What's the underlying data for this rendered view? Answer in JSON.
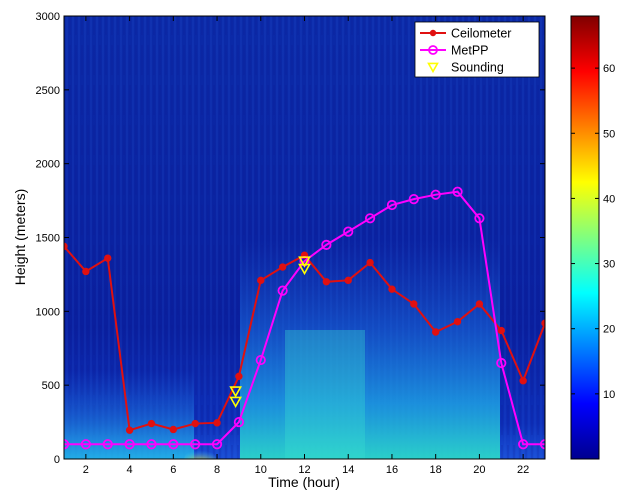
{
  "chart_data": {
    "type": "line",
    "background": "heatmap",
    "xlabel": "Time (hour)",
    "ylabel": "Height (meters)",
    "xlim": [
      1,
      23
    ],
    "ylim": [
      0,
      3000
    ],
    "xticks": [
      2,
      4,
      6,
      8,
      10,
      12,
      14,
      16,
      18,
      20,
      22
    ],
    "yticks": [
      0,
      500,
      1000,
      1500,
      2000,
      2500,
      3000
    ],
    "grid": false,
    "legend_position": "top-right",
    "series": [
      {
        "name": "Ceilometer",
        "color": "#e01010",
        "marker": "filled-circle",
        "x": [
          1,
          2,
          3,
          4,
          5,
          6,
          7,
          8,
          9,
          10,
          11,
          12,
          13,
          14,
          15,
          16,
          17,
          18,
          19,
          20,
          21,
          22,
          23
        ],
        "y": [
          1440,
          1270,
          1360,
          195,
          240,
          200,
          240,
          245,
          560,
          1210,
          1300,
          1380,
          1200,
          1210,
          1330,
          1150,
          1050,
          860,
          930,
          1050,
          870,
          530,
          920
        ]
      },
      {
        "name": "MetPP",
        "color": "#ff00ff",
        "marker": "open-circle",
        "x": [
          1,
          2,
          3,
          4,
          5,
          6,
          7,
          8,
          9,
          10,
          11,
          12,
          13,
          14,
          15,
          16,
          17,
          18,
          19,
          20,
          21,
          22,
          23
        ],
        "y": [
          100,
          100,
          100,
          100,
          100,
          100,
          100,
          100,
          250,
          670,
          1140,
          1340,
          1450,
          1540,
          1630,
          1720,
          1760,
          1790,
          1810,
          1630,
          650,
          100,
          100
        ]
      },
      {
        "name": "Sounding",
        "color": "#ffff00",
        "marker": "open-triangle-down",
        "x": [
          8.85,
          8.85,
          12.0,
          12.0
        ],
        "y": [
          460,
          390,
          1340,
          1290
        ]
      }
    ],
    "colorbar": {
      "range": [
        0,
        68
      ],
      "ticks": [
        10,
        20,
        30,
        40,
        50,
        60
      ],
      "colormap": "jet"
    }
  }
}
